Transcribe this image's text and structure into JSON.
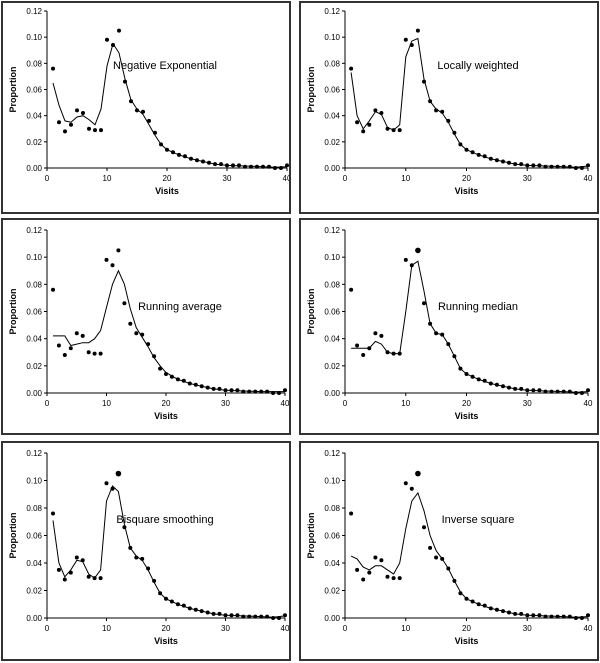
{
  "shared": {
    "x": [
      1,
      2,
      3,
      4,
      5,
      6,
      7,
      8,
      9,
      10,
      11,
      12,
      13,
      14,
      15,
      16,
      17,
      18,
      19,
      20,
      21,
      22,
      23,
      24,
      25,
      26,
      27,
      28,
      29,
      30,
      31,
      32,
      33,
      34,
      35,
      36,
      37,
      38,
      39,
      40
    ],
    "observed": [
      0.076,
      0.035,
      0.028,
      0.033,
      0.044,
      0.042,
      0.03,
      0.029,
      0.029,
      0.098,
      0.094,
      0.105,
      0.066,
      0.051,
      0.044,
      0.043,
      0.036,
      0.027,
      0.018,
      0.014,
      0.012,
      0.01,
      0.009,
      0.007,
      0.006,
      0.005,
      0.004,
      0.003,
      0.003,
      0.002,
      0.002,
      0.002,
      0.001,
      0.001,
      0.001,
      0.001,
      0.001,
      0.0,
      0.0,
      0.002
    ]
  },
  "chart_data": [
    {
      "type": "scatter",
      "title": "Negative Exponential",
      "xlabel": "Visits",
      "ylabel": "Proportion",
      "xlim": [
        0,
        40
      ],
      "ylim": [
        0,
        0.12
      ],
      "xticks": [
        "0",
        "10",
        "20",
        "30",
        "40"
      ],
      "yticks": [
        "0.00",
        "0.02",
        "0.04",
        "0.06",
        "0.08",
        "0.10",
        "0.12"
      ],
      "smooth": [
        [
          1,
          0.065
        ],
        [
          2,
          0.048
        ],
        [
          3,
          0.036
        ],
        [
          4,
          0.035
        ],
        [
          5,
          0.039
        ],
        [
          6,
          0.04
        ],
        [
          7,
          0.037
        ],
        [
          8,
          0.033
        ],
        [
          9,
          0.045
        ],
        [
          10,
          0.078
        ],
        [
          11,
          0.095
        ],
        [
          12,
          0.088
        ],
        [
          13,
          0.068
        ],
        [
          14,
          0.052
        ],
        [
          15,
          0.045
        ],
        [
          16,
          0.041
        ],
        [
          17,
          0.033
        ],
        [
          18,
          0.025
        ],
        [
          19,
          0.018
        ],
        [
          20,
          0.014
        ],
        [
          22,
          0.01
        ],
        [
          24,
          0.007
        ],
        [
          26,
          0.005
        ],
        [
          28,
          0.003
        ],
        [
          30,
          0.002
        ],
        [
          33,
          0.0015
        ],
        [
          36,
          0.001
        ],
        [
          38,
          0.0005
        ],
        [
          40,
          0.001
        ]
      ]
    },
    {
      "type": "scatter",
      "title": "Locally weighted",
      "xlabel": "Visits",
      "ylabel": "Proportion",
      "xlim": [
        0,
        40
      ],
      "ylim": [
        0,
        0.12
      ],
      "xticks": [
        "0",
        "10",
        "20",
        "30",
        "40"
      ],
      "yticks": [
        "0.00",
        "0.02",
        "0.04",
        "0.06",
        "0.08",
        "0.10",
        "0.12"
      ],
      "smooth": [
        [
          1,
          0.073
        ],
        [
          2,
          0.04
        ],
        [
          3,
          0.03
        ],
        [
          4,
          0.036
        ],
        [
          5,
          0.043
        ],
        [
          6,
          0.041
        ],
        [
          7,
          0.031
        ],
        [
          8,
          0.029
        ],
        [
          9,
          0.033
        ],
        [
          10,
          0.085
        ],
        [
          11,
          0.097
        ],
        [
          12,
          0.099
        ],
        [
          13,
          0.068
        ],
        [
          14,
          0.051
        ],
        [
          15,
          0.045
        ],
        [
          16,
          0.042
        ],
        [
          17,
          0.035
        ],
        [
          18,
          0.026
        ],
        [
          19,
          0.018
        ],
        [
          20,
          0.014
        ],
        [
          22,
          0.01
        ],
        [
          24,
          0.007
        ],
        [
          26,
          0.005
        ],
        [
          28,
          0.003
        ],
        [
          30,
          0.002
        ],
        [
          33,
          0.0015
        ],
        [
          36,
          0.001
        ],
        [
          38,
          0.0005
        ],
        [
          40,
          0.0015
        ]
      ]
    },
    {
      "type": "scatter",
      "title": "Running average",
      "xlabel": "Visits",
      "ylabel": "Proportion",
      "xlim": [
        0,
        40
      ],
      "ylim": [
        0,
        0.12
      ],
      "xticks": [
        "0",
        "10",
        "20",
        "30",
        "40"
      ],
      "yticks": [
        "0.00",
        "0.02",
        "0.04",
        "0.06",
        "0.08",
        "0.10",
        "0.12"
      ],
      "smooth": [
        [
          1,
          0.042
        ],
        [
          3,
          0.042
        ],
        [
          4,
          0.035
        ],
        [
          5,
          0.036
        ],
        [
          6,
          0.037
        ],
        [
          7,
          0.037
        ],
        [
          8,
          0.04
        ],
        [
          9,
          0.046
        ],
        [
          10,
          0.063
        ],
        [
          11,
          0.08
        ],
        [
          12,
          0.09
        ],
        [
          13,
          0.08
        ],
        [
          14,
          0.062
        ],
        [
          15,
          0.048
        ],
        [
          16,
          0.041
        ],
        [
          17,
          0.034
        ],
        [
          18,
          0.026
        ],
        [
          19,
          0.02
        ],
        [
          20,
          0.015
        ],
        [
          22,
          0.01
        ],
        [
          24,
          0.007
        ],
        [
          26,
          0.005
        ],
        [
          28,
          0.003
        ],
        [
          30,
          0.002
        ],
        [
          33,
          0.0015
        ],
        [
          36,
          0.001
        ],
        [
          40,
          0.001
        ]
      ]
    },
    {
      "type": "scatter",
      "title": "Running median",
      "xlabel": "Visits",
      "ylabel": "Proportion",
      "xlim": [
        0,
        40
      ],
      "ylim": [
        0,
        0.12
      ],
      "xticks": [
        "0",
        "10",
        "20",
        "30",
        "40"
      ],
      "yticks": [
        "0.00",
        "0.02",
        "0.04",
        "0.06",
        "0.08",
        "0.10",
        "0.12"
      ],
      "smooth": [
        [
          1,
          0.033
        ],
        [
          3,
          0.033
        ],
        [
          4,
          0.033
        ],
        [
          5,
          0.038
        ],
        [
          6,
          0.036
        ],
        [
          7,
          0.03
        ],
        [
          8,
          0.029
        ],
        [
          9,
          0.029
        ],
        [
          10,
          0.06
        ],
        [
          11,
          0.094
        ],
        [
          12,
          0.097
        ],
        [
          13,
          0.075
        ],
        [
          14,
          0.051
        ],
        [
          15,
          0.044
        ],
        [
          16,
          0.043
        ],
        [
          17,
          0.036
        ],
        [
          18,
          0.027
        ],
        [
          19,
          0.018
        ],
        [
          20,
          0.014
        ],
        [
          22,
          0.01
        ],
        [
          24,
          0.007
        ],
        [
          26,
          0.005
        ],
        [
          28,
          0.003
        ],
        [
          30,
          0.002
        ],
        [
          33,
          0.0015
        ],
        [
          36,
          0.001
        ],
        [
          38,
          0.0005
        ],
        [
          40,
          0.001
        ]
      ]
    },
    {
      "type": "scatter",
      "title": "Bisquare smoothing",
      "xlabel": "Visits",
      "ylabel": "Proportion",
      "xlim": [
        0,
        40
      ],
      "ylim": [
        0,
        0.12
      ],
      "xticks": [
        "0",
        "10",
        "20",
        "30",
        "40"
      ],
      "yticks": [
        "0.00",
        "0.02",
        "0.04",
        "0.06",
        "0.08",
        "0.10",
        "0.12"
      ],
      "smooth": [
        [
          1,
          0.071
        ],
        [
          2,
          0.04
        ],
        [
          3,
          0.03
        ],
        [
          4,
          0.035
        ],
        [
          5,
          0.042
        ],
        [
          6,
          0.041
        ],
        [
          7,
          0.032
        ],
        [
          8,
          0.029
        ],
        [
          9,
          0.035
        ],
        [
          10,
          0.085
        ],
        [
          11,
          0.096
        ],
        [
          12,
          0.092
        ],
        [
          13,
          0.068
        ],
        [
          14,
          0.051
        ],
        [
          15,
          0.045
        ],
        [
          16,
          0.042
        ],
        [
          17,
          0.035
        ],
        [
          18,
          0.026
        ],
        [
          19,
          0.018
        ],
        [
          20,
          0.014
        ],
        [
          22,
          0.01
        ],
        [
          24,
          0.007
        ],
        [
          26,
          0.005
        ],
        [
          28,
          0.003
        ],
        [
          30,
          0.002
        ],
        [
          33,
          0.0015
        ],
        [
          36,
          0.001
        ],
        [
          38,
          0.0005
        ],
        [
          40,
          0.0015
        ]
      ]
    },
    {
      "type": "scatter",
      "title": "Inverse square",
      "xlabel": "Visits",
      "ylabel": "Proportion",
      "xlim": [
        0,
        40
      ],
      "ylim": [
        0,
        0.12
      ],
      "xticks": [
        "0",
        "10",
        "20",
        "30",
        "40"
      ],
      "yticks": [
        "0.00",
        "0.02",
        "0.04",
        "0.06",
        "0.08",
        "0.10",
        "0.12"
      ],
      "smooth": [
        [
          1,
          0.045
        ],
        [
          2,
          0.043
        ],
        [
          3,
          0.037
        ],
        [
          4,
          0.035
        ],
        [
          5,
          0.038
        ],
        [
          6,
          0.038
        ],
        [
          7,
          0.035
        ],
        [
          8,
          0.032
        ],
        [
          9,
          0.04
        ],
        [
          10,
          0.065
        ],
        [
          11,
          0.085
        ],
        [
          12,
          0.091
        ],
        [
          13,
          0.078
        ],
        [
          14,
          0.06
        ],
        [
          15,
          0.049
        ],
        [
          16,
          0.043
        ],
        [
          17,
          0.036
        ],
        [
          18,
          0.027
        ],
        [
          19,
          0.019
        ],
        [
          20,
          0.014
        ],
        [
          22,
          0.01
        ],
        [
          24,
          0.007
        ],
        [
          26,
          0.005
        ],
        [
          28,
          0.003
        ],
        [
          30,
          0.002
        ],
        [
          33,
          0.0015
        ],
        [
          36,
          0.001
        ],
        [
          38,
          0.0005
        ],
        [
          40,
          0.001
        ]
      ]
    }
  ]
}
